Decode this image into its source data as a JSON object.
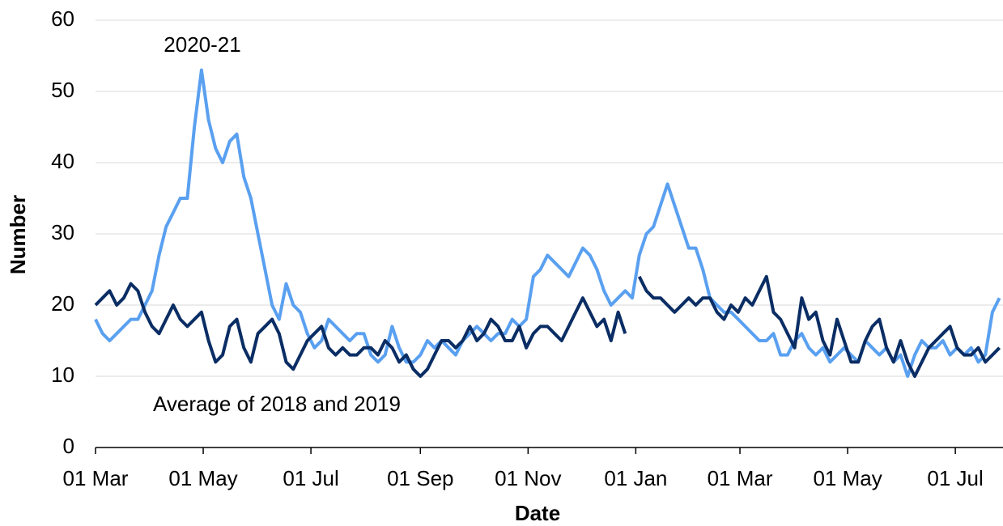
{
  "chart_data": {
    "type": "line",
    "xlabel": "Date",
    "ylabel": "Number",
    "x": [
      0,
      4,
      8,
      12,
      16,
      20,
      24,
      28,
      32,
      36,
      40,
      44,
      48,
      52,
      56,
      60,
      64,
      68,
      72,
      76,
      80,
      84,
      88,
      92,
      96,
      100,
      104,
      108,
      112,
      116,
      120,
      124,
      128,
      132,
      136,
      140,
      144,
      148,
      152,
      156,
      160,
      164,
      168,
      172,
      176,
      180,
      184,
      188,
      192,
      196,
      200,
      204,
      208,
      212,
      216,
      220,
      224,
      228,
      232,
      236,
      240,
      244,
      248,
      252,
      256,
      260,
      264,
      268,
      272,
      276,
      280,
      284,
      288,
      292,
      296,
      300,
      304,
      308,
      312,
      316,
      320,
      324,
      328,
      332,
      336,
      340,
      344,
      348,
      352,
      356,
      360,
      364,
      368,
      372,
      376,
      380,
      384,
      388,
      392,
      396,
      400,
      404,
      408,
      412,
      416,
      420,
      424,
      428,
      432,
      436,
      440,
      444,
      448,
      452,
      456,
      460,
      464,
      468,
      472,
      476,
      480,
      484,
      488,
      492,
      496,
      500,
      504,
      508,
      512
    ],
    "series": [
      {
        "name": "2020-21",
        "color": "#5aa0f0",
        "values": [
          18,
          16,
          15,
          16,
          17,
          18,
          18,
          20,
          22,
          27,
          31,
          33,
          35,
          35,
          45,
          53,
          46,
          42,
          40,
          43,
          44,
          38,
          35,
          30,
          25,
          20,
          18,
          23,
          20,
          19,
          16,
          14,
          15,
          18,
          17,
          16,
          15,
          16,
          16,
          13,
          12,
          13,
          17,
          14,
          12,
          12,
          13,
          15,
          14,
          15,
          14,
          13,
          15,
          16,
          17,
          16,
          15,
          16,
          16,
          18,
          17,
          18,
          24,
          25,
          27,
          26,
          25,
          24,
          26,
          28,
          27,
          25,
          22,
          20,
          21,
          22,
          21,
          27,
          30,
          31,
          34,
          37,
          34,
          31,
          28,
          28,
          25,
          21,
          20,
          19,
          19,
          18,
          17,
          16,
          15,
          15,
          16,
          13,
          13,
          15,
          16,
          14,
          13,
          14,
          12,
          13,
          14,
          13,
          12,
          15,
          14,
          13,
          14,
          12,
          13,
          10,
          13,
          15,
          14,
          14,
          15,
          13,
          14,
          13,
          14,
          12,
          13,
          19,
          21
        ]
      },
      {
        "name": "Average of 2018 and 2019",
        "color": "#0a2d64",
        "values": [
          20,
          21,
          22,
          20,
          21,
          23,
          22,
          19,
          17,
          16,
          18,
          20,
          18,
          17,
          18,
          19,
          15,
          12,
          13,
          17,
          18,
          14,
          12,
          16,
          17,
          18,
          16,
          12,
          11,
          13,
          15,
          16,
          17,
          14,
          13,
          14,
          13,
          13,
          14,
          14,
          13,
          15,
          14,
          12,
          13,
          11,
          10,
          11,
          13,
          15,
          15,
          14,
          15,
          17,
          15,
          16,
          18,
          17,
          15,
          15,
          17,
          14,
          16,
          17,
          17,
          16,
          15,
          17,
          19,
          21,
          19,
          17,
          18,
          15,
          19,
          16,
          null,
          24,
          22,
          21,
          21,
          20,
          19,
          20,
          21,
          20,
          21,
          21,
          19,
          18,
          20,
          19,
          21,
          20,
          22,
          24,
          19,
          18,
          16,
          14,
          21,
          18,
          19,
          15,
          13,
          18,
          15,
          12,
          12,
          15,
          17,
          18,
          14,
          12,
          15,
          12,
          10,
          12,
          14,
          15,
          16,
          17,
          14,
          13,
          13,
          14,
          12,
          13,
          14
        ]
      }
    ],
    "xlim": [
      0,
      514
    ],
    "xticks": [
      {
        "value": 0,
        "label": "01 Mar"
      },
      {
        "value": 61,
        "label": "01 May"
      },
      {
        "value": 122,
        "label": "01 Jul"
      },
      {
        "value": 184,
        "label": "01 Sep"
      },
      {
        "value": 245,
        "label": "01 Nov"
      },
      {
        "value": 306,
        "label": "01 Jan"
      },
      {
        "value": 365,
        "label": "01 Mar"
      },
      {
        "value": 426,
        "label": "01 May"
      },
      {
        "value": 487,
        "label": "01 Jul"
      }
    ],
    "ylim": [
      0,
      60
    ],
    "yticks": [
      0,
      10,
      20,
      30,
      40,
      50,
      60
    ],
    "grid": true
  }
}
